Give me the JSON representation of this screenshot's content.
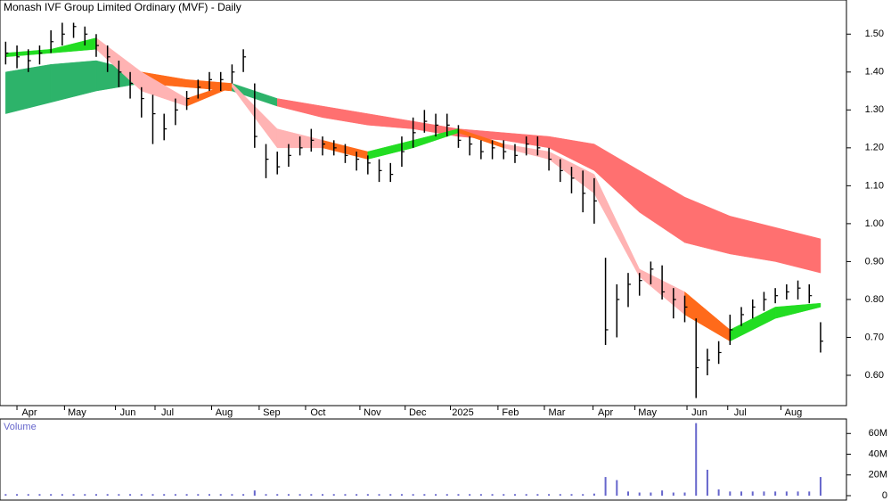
{
  "chart_data": {
    "type": "ohlc",
    "title": "Monash IVF Group Limited Ordinary (MVF) - Daily",
    "volume_label": "Volume",
    "xlim": [
      -0.5,
      73.5
    ],
    "xticks": [
      {
        "value": 2.1,
        "label": "Apr"
      },
      {
        "value": 6.3,
        "label": "May"
      },
      {
        "value": 10.8,
        "label": "Jun"
      },
      {
        "value": 14.3,
        "label": "Jul"
      },
      {
        "value": 19.3,
        "label": "Aug"
      },
      {
        "value": 23.5,
        "label": "Sep"
      },
      {
        "value": 27.6,
        "label": "Oct"
      },
      {
        "value": 32.4,
        "label": "Nov"
      },
      {
        "value": 36.4,
        "label": "Dec"
      },
      {
        "value": 40.4,
        "label": "2025"
      },
      {
        "value": 44.6,
        "label": "Feb"
      },
      {
        "value": 48.7,
        "label": "Mar"
      },
      {
        "value": 53,
        "label": "Apr"
      },
      {
        "value": 56.7,
        "label": "May"
      },
      {
        "value": 61.3,
        "label": "Jun"
      },
      {
        "value": 64.9,
        "label": "Jul"
      },
      {
        "value": 69.6,
        "label": "Aug"
      }
    ],
    "ylim": [
      0.52,
      1.59
    ],
    "yticks": [
      {
        "value": 0.6,
        "label": "0.60"
      },
      {
        "value": 0.7,
        "label": "0.70"
      },
      {
        "value": 0.8,
        "label": "0.80"
      },
      {
        "value": 0.9,
        "label": "0.90"
      },
      {
        "value": 1.0,
        "label": "1.00"
      },
      {
        "value": 1.1,
        "label": "1.10"
      },
      {
        "value": 1.2,
        "label": "1.20"
      },
      {
        "value": 1.3,
        "label": "1.30"
      },
      {
        "value": 1.4,
        "label": "1.40"
      },
      {
        "value": 1.5,
        "label": "1.50"
      }
    ],
    "bar_color": "#000000",
    "close": [
      1.45,
      1.44,
      1.43,
      1.45,
      1.48,
      1.5,
      1.52,
      1.5,
      1.47,
      1.44,
      1.4,
      1.37,
      1.33,
      1.29,
      1.25,
      1.3,
      1.33,
      1.36,
      1.38,
      1.38,
      1.4,
      1.44,
      1.23,
      1.17,
      1.15,
      1.18,
      1.2,
      1.22,
      1.21,
      1.2,
      1.18,
      1.17,
      1.16,
      1.14,
      1.13,
      1.19,
      1.24,
      1.27,
      1.26,
      1.26,
      1.22,
      1.21,
      1.19,
      1.2,
      1.19,
      1.18,
      1.21,
      1.2,
      1.17,
      1.14,
      1.12,
      1.08,
      1.06,
      0.72,
      0.8,
      0.84,
      0.85,
      0.88,
      0.82,
      0.8,
      0.78,
      0.62,
      0.64,
      0.66,
      0.72,
      0.76,
      0.78,
      0.8,
      0.81,
      0.82,
      0.83,
      0.81,
      0.69
    ],
    "high": [
      1.48,
      1.47,
      1.46,
      1.47,
      1.51,
      1.53,
      1.53,
      1.52,
      1.5,
      1.47,
      1.43,
      1.4,
      1.36,
      1.34,
      1.29,
      1.33,
      1.35,
      1.38,
      1.4,
      1.4,
      1.42,
      1.46,
      1.37,
      1.21,
      1.19,
      1.21,
      1.23,
      1.25,
      1.23,
      1.22,
      1.21,
      1.19,
      1.18,
      1.17,
      1.16,
      1.23,
      1.28,
      1.3,
      1.29,
      1.29,
      1.26,
      1.23,
      1.22,
      1.22,
      1.22,
      1.21,
      1.23,
      1.23,
      1.2,
      1.17,
      1.15,
      1.14,
      1.12,
      0.91,
      0.84,
      0.87,
      0.87,
      0.9,
      0.89,
      0.83,
      0.81,
      0.75,
      0.67,
      0.69,
      0.76,
      0.78,
      0.8,
      0.82,
      0.83,
      0.84,
      0.85,
      0.84,
      0.74
    ],
    "low": [
      1.42,
      1.41,
      1.4,
      1.42,
      1.45,
      1.47,
      1.49,
      1.47,
      1.44,
      1.4,
      1.36,
      1.33,
      1.28,
      1.21,
      1.22,
      1.26,
      1.3,
      1.33,
      1.35,
      1.35,
      1.37,
      1.4,
      1.2,
      1.12,
      1.13,
      1.15,
      1.18,
      1.19,
      1.18,
      1.18,
      1.16,
      1.14,
      1.13,
      1.11,
      1.11,
      1.15,
      1.2,
      1.24,
      1.23,
      1.23,
      1.2,
      1.18,
      1.17,
      1.17,
      1.17,
      1.16,
      1.18,
      1.18,
      1.14,
      1.11,
      1.08,
      1.03,
      1.0,
      0.68,
      0.7,
      0.78,
      0.81,
      0.84,
      0.8,
      0.75,
      0.74,
      0.54,
      0.6,
      0.63,
      0.68,
      0.73,
      0.75,
      0.77,
      0.79,
      0.8,
      0.8,
      0.79,
      0.66
    ],
    "ribbon_x": [
      0,
      4,
      8,
      12,
      16,
      20,
      24,
      28,
      32,
      36,
      40,
      44,
      48,
      52,
      56,
      60,
      64,
      68,
      72
    ],
    "ribbons": [
      {
        "upper": [
          1.4,
          1.42,
          1.43,
          1.4,
          1.38,
          1.37,
          1.33,
          1.31,
          1.29,
          1.27,
          1.25,
          1.24,
          1.23,
          1.21,
          1.14,
          1.07,
          1.02,
          0.99,
          0.96
        ],
        "lower": [
          1.29,
          1.32,
          1.35,
          1.37,
          1.36,
          1.35,
          1.31,
          1.28,
          1.26,
          1.25,
          1.23,
          1.22,
          1.2,
          1.14,
          1.03,
          0.95,
          0.92,
          0.9,
          0.87
        ],
        "colors": [
          "#2db36a",
          "#2db36a",
          "#2db36a",
          "#ff6a1a",
          "#ff6a1a",
          "#2db36a",
          "#ff7070",
          "#ff7070",
          "#ff7070",
          "#ff7070",
          "#ff7070",
          "#ff7070",
          "#ff7070",
          "#ff7070",
          "#ff7070",
          "#ff7070",
          "#ff7070",
          "#ff7070"
        ]
      },
      {
        "upper": [
          1.45,
          1.46,
          1.49,
          1.4,
          1.33,
          1.37,
          1.25,
          1.22,
          1.19,
          1.22,
          1.25,
          1.21,
          1.19,
          1.13,
          0.88,
          0.82,
          0.72,
          0.78,
          0.79
        ],
        "lower": [
          1.44,
          1.45,
          1.46,
          1.35,
          1.31,
          1.36,
          1.2,
          1.2,
          1.17,
          1.2,
          1.24,
          1.2,
          1.17,
          1.08,
          0.86,
          0.76,
          0.69,
          0.75,
          0.78
        ],
        "colors": [
          "#22dd22",
          "#22dd22",
          "#ffb3b3",
          "#ffb3b3",
          "#ff6a1a",
          "#ffb3b3",
          "#ffb3b3",
          "#ff6a1a",
          "#22dd22",
          "#22dd22",
          "#ff6a1a",
          "#ffb3b3",
          "#ffb3b3",
          "#ffb3b3",
          "#ffb3b3",
          "#ff6a1a",
          "#22dd22",
          "#22dd22"
        ]
      }
    ],
    "volume": [
      1.5,
      1.5,
      1.5,
      1.5,
      1.5,
      1.5,
      1.5,
      1.5,
      1.5,
      1.5,
      1.5,
      1.5,
      1.5,
      1.5,
      1.5,
      1.5,
      1.5,
      1.5,
      1.5,
      1.5,
      1.5,
      1.5,
      5,
      1.5,
      1.5,
      1.5,
      1.5,
      1.5,
      1.5,
      1.5,
      1.5,
      1.5,
      1.5,
      1.5,
      1.5,
      1.5,
      1.5,
      1.5,
      1.5,
      1.5,
      1.5,
      1.5,
      1.5,
      1.5,
      1.5,
      1.5,
      1.5,
      1.5,
      1.5,
      1.5,
      1.5,
      1.5,
      2,
      18,
      15,
      4,
      3,
      3,
      5,
      3,
      3,
      70,
      25,
      6,
      4,
      4,
      4,
      4,
      4,
      4,
      4,
      4,
      18
    ],
    "volume_color": "#6666cc",
    "volume_ylim": [
      0,
      74
    ],
    "volume_yticks": [
      0,
      {
        "value": 20,
        "label": "20M"
      },
      {
        "value": 40,
        "label": "40M"
      },
      {
        "value": 60,
        "label": "60M"
      }
    ]
  }
}
